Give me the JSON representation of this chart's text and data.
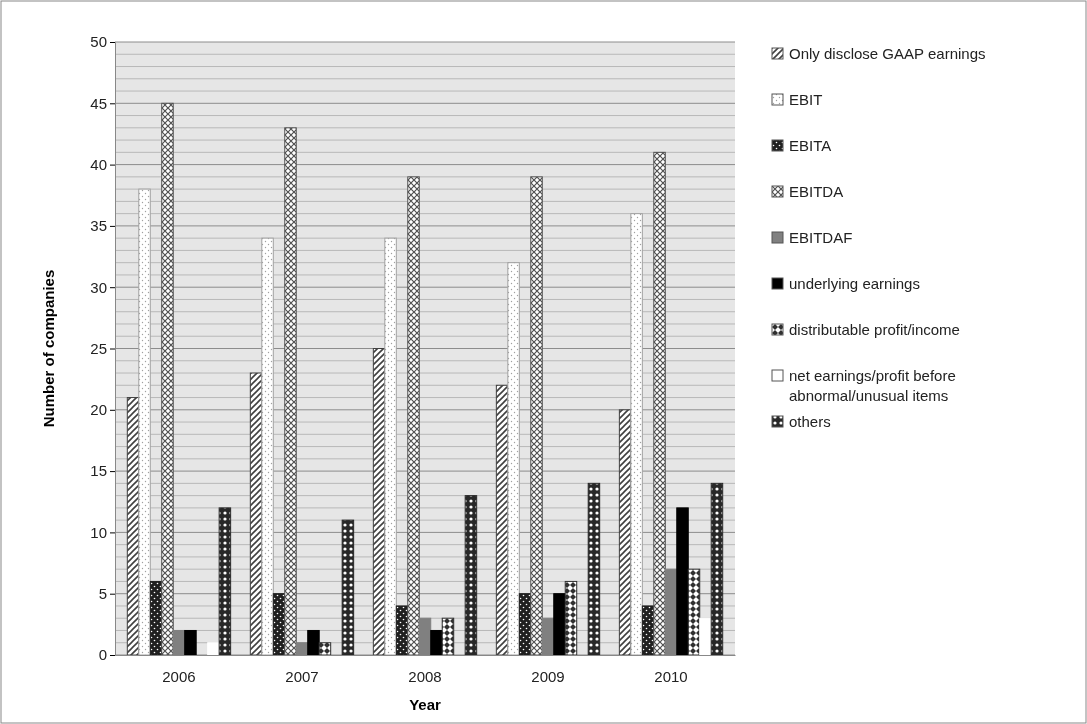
{
  "chart_data": {
    "type": "bar",
    "xlabel": "Year",
    "ylabel": "Number of companies",
    "categories": [
      "2006",
      "2007",
      "2008",
      "2009",
      "2010"
    ],
    "series": [
      {
        "name": "Only disclose GAAP earnings",
        "color": "#404040",
        "values": [
          21,
          23,
          25,
          22,
          20
        ]
      },
      {
        "name": "EBIT",
        "color": "#a0a0a0",
        "values": [
          38,
          34,
          34,
          32,
          36
        ]
      },
      {
        "name": "EBITA",
        "color": "#202020",
        "values": [
          6,
          5,
          4,
          5,
          4
        ]
      },
      {
        "name": "EBITDA",
        "color": "#505050",
        "values": [
          45,
          43,
          39,
          39,
          41
        ]
      },
      {
        "name": "EBITDAF",
        "color": "#808080",
        "values": [
          2,
          1,
          3,
          3,
          7
        ]
      },
      {
        "name": "underlying earnings",
        "color": "#000000",
        "values": [
          2,
          2,
          2,
          5,
          12
        ]
      },
      {
        "name": "distributable profit/income",
        "color": "#303030",
        "values": [
          0,
          1,
          3,
          6,
          7
        ]
      },
      {
        "name": "net earnings/profit before abnormal/unusual items",
        "color": "#ffffff",
        "values": [
          1,
          0,
          0,
          0,
          3
        ]
      },
      {
        "name": "others",
        "color": "#282828",
        "values": [
          12,
          11,
          13,
          14,
          14
        ]
      }
    ],
    "ylim": [
      0,
      50
    ],
    "yticks": [
      0,
      5,
      10,
      15,
      20,
      25,
      30,
      35,
      40,
      45,
      50
    ],
    "grid": "y",
    "legend": "right"
  }
}
